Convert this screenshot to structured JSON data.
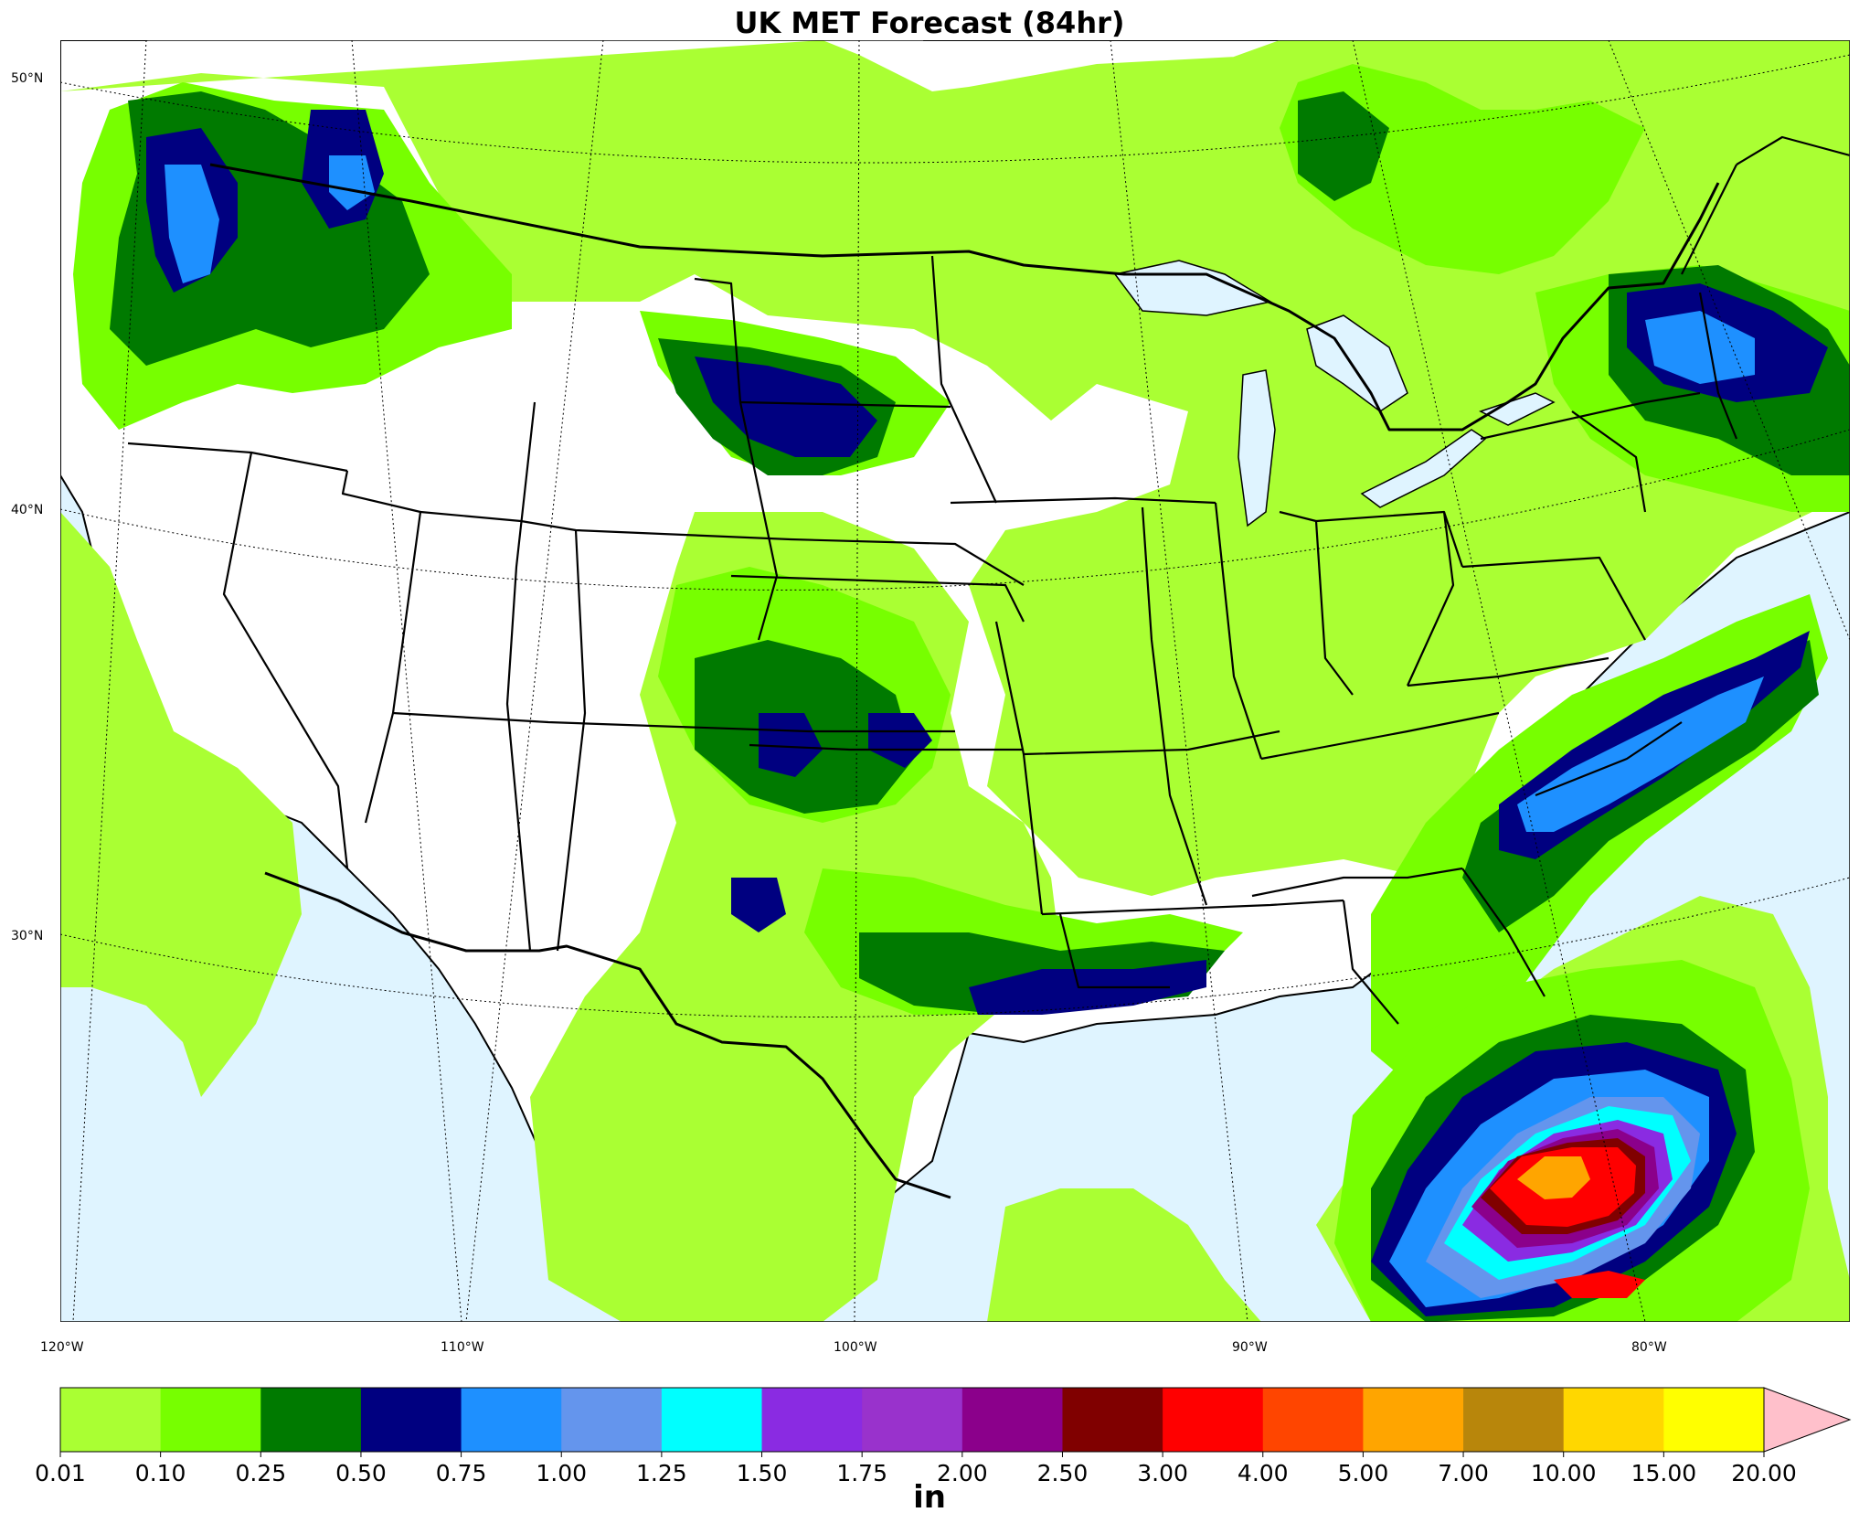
{
  "title": "UK MET Forecast (84hr)",
  "map": {
    "lat_labels": [
      "50°N",
      "40°N",
      "30°N"
    ],
    "lon_labels": [
      "120°W",
      "110°W",
      "100°W",
      "90°W",
      "80°W"
    ],
    "colors": {
      "ocean_lakes": "#dff4ff",
      "land": "#ffffff",
      "border": "#000000"
    }
  },
  "colorbar": {
    "unit": "in",
    "ticks": [
      "0.01",
      "0.10",
      "0.25",
      "0.50",
      "0.75",
      "1.00",
      "1.25",
      "1.50",
      "1.75",
      "2.00",
      "2.50",
      "3.00",
      "4.00",
      "5.00",
      "7.00",
      "10.00",
      "15.00",
      "20.00"
    ],
    "colors": [
      "#aaff33",
      "#77ff00",
      "#007a00",
      "#000080",
      "#1e90ff",
      "#6495ed",
      "#00ffff",
      "#8a2be2",
      "#9932cc",
      "#8b008b",
      "#800000",
      "#ff0000",
      "#ff4500",
      "#ffa500",
      "#b8860b",
      "#ffd700",
      "#ffff00"
    ],
    "extend_color": "#ffc0cb"
  }
}
